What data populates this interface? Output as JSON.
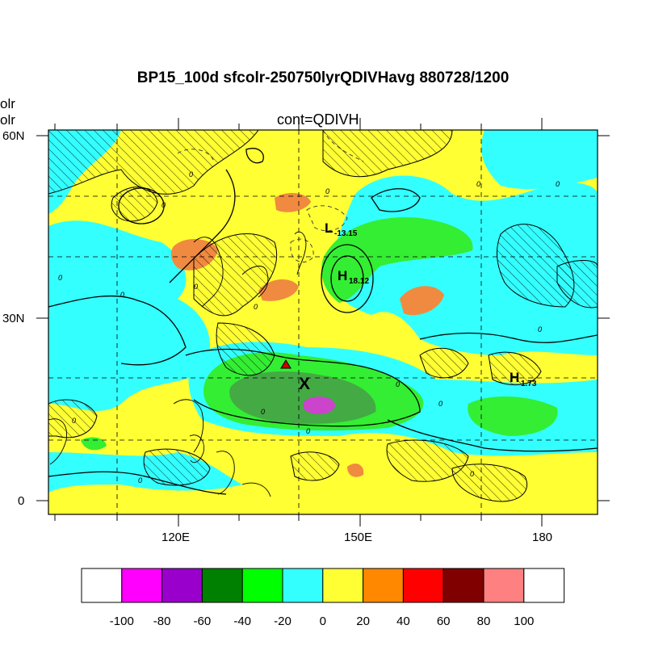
{
  "header": {
    "title": "BP15_100d sfcolr-250750lyrQDIVHavg  880728/1200",
    "left_label_1": "olr",
    "left_label_2": "olr",
    "subtitle": "cont=QDIVH"
  },
  "axes": {
    "y_ticks": [
      "60N",
      "30N",
      "0"
    ],
    "x_ticks": [
      "120E",
      "150E",
      "180"
    ]
  },
  "annotations": {
    "low": {
      "symbol": "L",
      "value": "-13.15"
    },
    "high_1": {
      "symbol": "H",
      "value": "18.12"
    },
    "high_2": {
      "symbol": "H",
      "value": "1.73"
    },
    "storm_mark": "X",
    "contour_zero_label": "0"
  },
  "colorbar": {
    "labels": [
      "-100",
      "-80",
      "-60",
      "-40",
      "-20",
      "0",
      "20",
      "40",
      "60",
      "80",
      "100"
    ],
    "colors": [
      "#ffffff",
      "#ff00ff",
      "#9900cc",
      "#008000",
      "#00ff00",
      "#33ffff",
      "#ffff33",
      "#ff8800",
      "#ff0000",
      "#800000",
      "#ff8080",
      "#ffffff"
    ]
  },
  "colors": {
    "yellow": "#ffff33",
    "cyan": "#33ffff",
    "green": "#33ee33",
    "darkgreen": "#44aa44",
    "orange": "#f08a40",
    "purple": "#cc44cc",
    "marker": "#cc0000"
  }
}
